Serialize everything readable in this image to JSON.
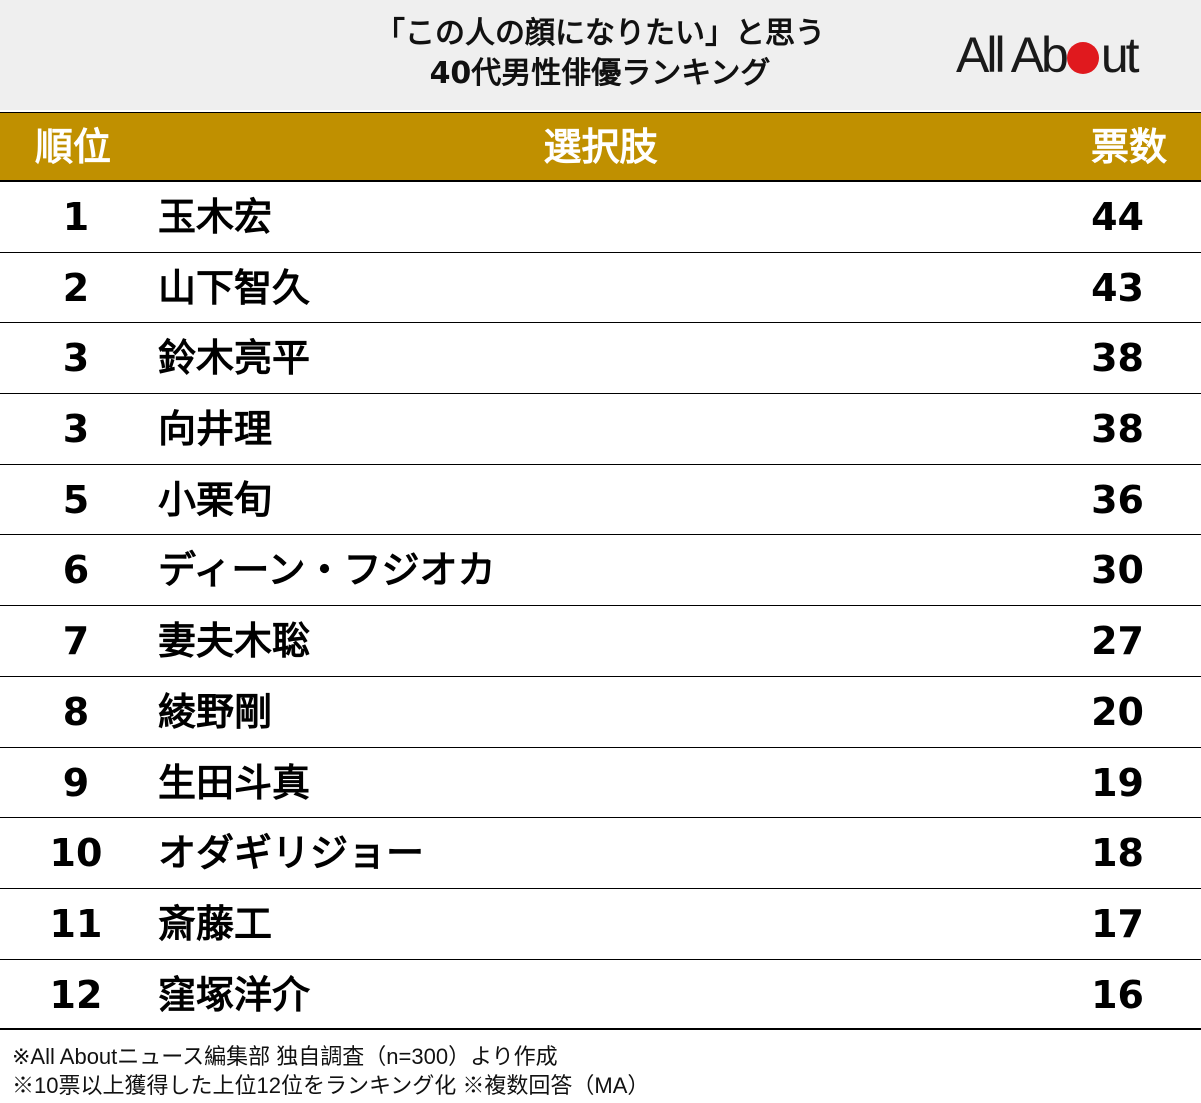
{
  "header": {
    "title_line1": "「この人の顔になりたい」と思う",
    "title_line2": "40代男性俳優ランキング",
    "logo": {
      "part1": "All Ab",
      "part2": "ut",
      "dot_color": "#e0191e"
    }
  },
  "table": {
    "columns": [
      "順位",
      "選択肢",
      "票数"
    ],
    "header_color": "#c09000",
    "rows": [
      {
        "rank": "1",
        "name": "玉木宏",
        "votes": "44"
      },
      {
        "rank": "2",
        "name": "山下智久",
        "votes": "43"
      },
      {
        "rank": "3",
        "name": "鈴木亮平",
        "votes": "38"
      },
      {
        "rank": "3",
        "name": "向井理",
        "votes": "38"
      },
      {
        "rank": "5",
        "name": "小栗旬",
        "votes": "36"
      },
      {
        "rank": "6",
        "name": "ディーン・フジオカ",
        "votes": "30"
      },
      {
        "rank": "7",
        "name": "妻夫木聡",
        "votes": "27"
      },
      {
        "rank": "8",
        "name": "綾野剛",
        "votes": "20"
      },
      {
        "rank": "9",
        "name": "生田斗真",
        "votes": "19"
      },
      {
        "rank": "10",
        "name": "オダギリジョー",
        "votes": "18"
      },
      {
        "rank": "11",
        "name": "斎藤工",
        "votes": "17"
      },
      {
        "rank": "12",
        "name": "窪塚洋介",
        "votes": "16"
      }
    ]
  },
  "notes": {
    "line1": "※All Aboutニュース編集部 独自調査（n=300）より作成",
    "line2": "※10票以上獲得した上位12位をランキング化 ※複数回答（MA）"
  },
  "chart_data": {
    "type": "table",
    "title": "「この人の顔になりたい」と思う40代男性俳優ランキング",
    "columns": [
      "順位",
      "選択肢",
      "票数"
    ],
    "categories": [
      "玉木宏",
      "山下智久",
      "鈴木亮平",
      "向井理",
      "小栗旬",
      "ディーン・フジオカ",
      "妻夫木聡",
      "綾野剛",
      "生田斗真",
      "オダギリジョー",
      "斎藤工",
      "窪塚洋介"
    ],
    "ranks": [
      1,
      2,
      3,
      3,
      5,
      6,
      7,
      8,
      9,
      10,
      11,
      12
    ],
    "values": [
      44,
      43,
      38,
      38,
      36,
      30,
      27,
      20,
      19,
      18,
      17,
      16
    ],
    "notes": [
      "※All Aboutニュース編集部 独自調査（n=300）より作成",
      "※10票以上獲得した上位12位をランキング化 ※複数回答（MA）"
    ]
  }
}
